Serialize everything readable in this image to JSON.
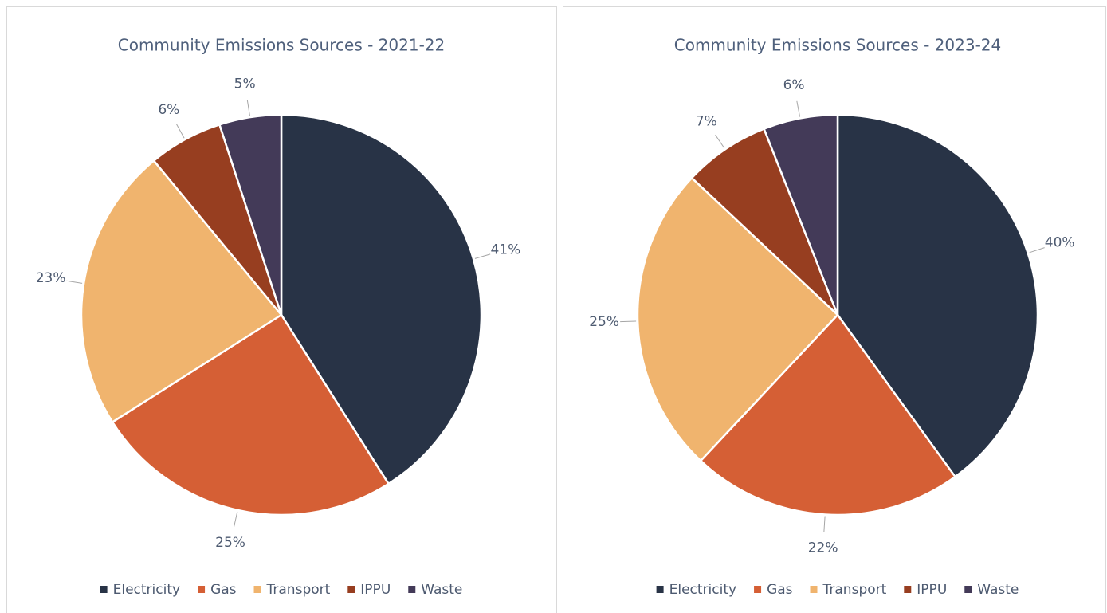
{
  "chart_data": [
    {
      "type": "pie",
      "title": "Community Emissions Sources - 2021-22",
      "categories": [
        "Electricity",
        "Gas",
        "Transport",
        "IPPU",
        "Waste"
      ],
      "values": [
        41,
        25,
        23,
        6,
        5
      ],
      "value_labels": [
        "41%",
        "25%",
        "23%",
        "6%",
        "5%"
      ],
      "colors": [
        "#283346",
        "#d55f35",
        "#f0b46e",
        "#973e20",
        "#433a58"
      ],
      "legend": "bottom"
    },
    {
      "type": "pie",
      "title": "Community Emissions Sources - 2023-24",
      "categories": [
        "Electricity",
        "Gas",
        "Transport",
        "IPPU",
        "Waste"
      ],
      "values": [
        40,
        22,
        25,
        7,
        6
      ],
      "value_labels": [
        "40%",
        "22%",
        "25%",
        "7%",
        "6%"
      ],
      "colors": [
        "#283346",
        "#d55f35",
        "#f0b46e",
        "#973e20",
        "#433a58"
      ],
      "legend": "bottom"
    }
  ]
}
